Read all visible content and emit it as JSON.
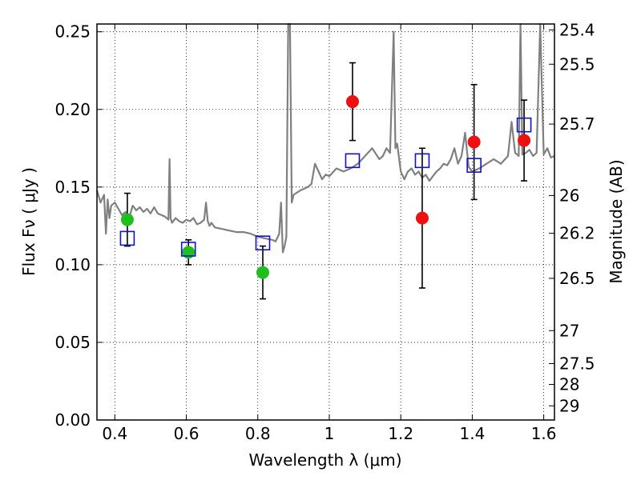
{
  "chart_data": {
    "type": "scatter",
    "xlabel": "Wavelength  λ (μm)",
    "ylabel": "Flux  Fν  ( μJy )",
    "y2label": "Magnitude (AB)",
    "xlim": [
      0.35,
      1.63
    ],
    "ylim": [
      0.0,
      0.255
    ],
    "grid": true,
    "x_ticks": [
      {
        "value": 0.4,
        "label": "0.4"
      },
      {
        "value": 0.6,
        "label": "0.6"
      },
      {
        "value": 0.8,
        "label": "0.8"
      },
      {
        "value": 1.0,
        "label": "1"
      },
      {
        "value": 1.2,
        "label": "1.2"
      },
      {
        "value": 1.4,
        "label": "1.4"
      },
      {
        "value": 1.6,
        "label": "1.6"
      }
    ],
    "y_ticks": [
      {
        "value": 0.0,
        "label": "0.00"
      },
      {
        "value": 0.05,
        "label": "0.05"
      },
      {
        "value": 0.1,
        "label": "0.10"
      },
      {
        "value": 0.15,
        "label": "0.15"
      },
      {
        "value": 0.2,
        "label": "0.20"
      },
      {
        "value": 0.25,
        "label": "0.25"
      }
    ],
    "y2_ticks": [
      {
        "mag": 25.4,
        "label": "25.4"
      },
      {
        "mag": 25.5,
        "label": "25.5"
      },
      {
        "mag": 25.7,
        "label": "25.7"
      },
      {
        "mag": 26.0,
        "label": "26"
      },
      {
        "mag": 26.2,
        "label": "26.2"
      },
      {
        "mag": 26.5,
        "label": "26.5"
      },
      {
        "mag": 27.0,
        "label": "27"
      },
      {
        "mag": 27.5,
        "label": "27.5"
      },
      {
        "mag": 28.0,
        "label": "28"
      },
      {
        "mag": 29.0,
        "label": "29"
      }
    ],
    "series": [
      {
        "kind": "model-spectrum",
        "color": "#808080",
        "x": [
          0.35,
          0.36,
          0.37,
          0.375,
          0.38,
          0.385,
          0.39,
          0.4,
          0.41,
          0.42,
          0.43,
          0.44,
          0.45,
          0.46,
          0.47,
          0.48,
          0.49,
          0.5,
          0.51,
          0.52,
          0.53,
          0.54,
          0.55,
          0.553,
          0.556,
          0.56,
          0.57,
          0.58,
          0.59,
          0.6,
          0.61,
          0.62,
          0.63,
          0.64,
          0.65,
          0.655,
          0.66,
          0.665,
          0.67,
          0.68,
          0.7,
          0.72,
          0.74,
          0.76,
          0.78,
          0.8,
          0.82,
          0.84,
          0.85,
          0.86,
          0.865,
          0.87,
          0.875,
          0.88,
          0.885,
          0.89,
          0.895,
          0.9,
          0.92,
          0.94,
          0.95,
          0.96,
          0.97,
          0.98,
          0.99,
          1.0,
          1.02,
          1.04,
          1.06,
          1.08,
          1.1,
          1.12,
          1.14,
          1.15,
          1.16,
          1.17,
          1.18,
          1.185,
          1.19,
          1.2,
          1.21,
          1.22,
          1.23,
          1.24,
          1.25,
          1.26,
          1.27,
          1.28,
          1.29,
          1.3,
          1.31,
          1.32,
          1.33,
          1.34,
          1.35,
          1.36,
          1.37,
          1.38,
          1.39,
          1.4,
          1.42,
          1.44,
          1.46,
          1.48,
          1.5,
          1.51,
          1.52,
          1.53,
          1.535,
          1.54,
          1.55,
          1.56,
          1.57,
          1.58,
          1.59,
          1.6,
          1.61,
          1.62,
          1.63
        ],
        "y": [
          0.148,
          0.14,
          0.145,
          0.12,
          0.142,
          0.13,
          0.138,
          0.14,
          0.136,
          0.132,
          0.134,
          0.13,
          0.138,
          0.135,
          0.137,
          0.134,
          0.136,
          0.133,
          0.137,
          0.133,
          0.132,
          0.131,
          0.129,
          0.168,
          0.13,
          0.127,
          0.13,
          0.128,
          0.127,
          0.129,
          0.128,
          0.13,
          0.126,
          0.127,
          0.129,
          0.14,
          0.128,
          0.125,
          0.127,
          0.124,
          0.123,
          0.122,
          0.121,
          0.121,
          0.12,
          0.118,
          0.117,
          0.116,
          0.115,
          0.12,
          0.14,
          0.108,
          0.112,
          0.118,
          0.255,
          0.255,
          0.14,
          0.145,
          0.148,
          0.15,
          0.152,
          0.165,
          0.16,
          0.155,
          0.158,
          0.157,
          0.162,
          0.16,
          0.162,
          0.165,
          0.17,
          0.175,
          0.168,
          0.17,
          0.175,
          0.172,
          0.25,
          0.175,
          0.178,
          0.16,
          0.155,
          0.16,
          0.162,
          0.158,
          0.16,
          0.156,
          0.158,
          0.154,
          0.157,
          0.16,
          0.162,
          0.165,
          0.164,
          0.168,
          0.175,
          0.165,
          0.17,
          0.185,
          0.163,
          0.16,
          0.162,
          0.165,
          0.168,
          0.165,
          0.17,
          0.192,
          0.172,
          0.17,
          0.255,
          0.171,
          0.172,
          0.174,
          0.17,
          0.172,
          0.255,
          0.171,
          0.175,
          0.169,
          0.17
        ]
      },
      {
        "kind": "green-points",
        "color": "#1fbf1f",
        "points": [
          {
            "x": 0.435,
            "y": 0.129,
            "err": 0.017
          },
          {
            "x": 0.606,
            "y": 0.108,
            "err": 0.008
          },
          {
            "x": 0.814,
            "y": 0.095,
            "err": 0.017
          }
        ]
      },
      {
        "kind": "red-points",
        "color": "#ee1111",
        "points": [
          {
            "x": 1.065,
            "y": 0.205,
            "err": 0.025
          },
          {
            "x": 1.26,
            "y": 0.13,
            "err": 0.045
          },
          {
            "x": 1.405,
            "y": 0.179,
            "err": 0.037
          },
          {
            "x": 1.545,
            "y": 0.18,
            "err": 0.026
          }
        ]
      },
      {
        "kind": "model-boxes",
        "color": "#1111cc",
        "points": [
          {
            "x": 0.435,
            "y": 0.117
          },
          {
            "x": 0.606,
            "y": 0.11
          },
          {
            "x": 0.814,
            "y": 0.114
          },
          {
            "x": 1.065,
            "y": 0.167
          },
          {
            "x": 1.26,
            "y": 0.167
          },
          {
            "x": 1.405,
            "y": 0.164
          },
          {
            "x": 1.545,
            "y": 0.19
          }
        ]
      }
    ]
  }
}
